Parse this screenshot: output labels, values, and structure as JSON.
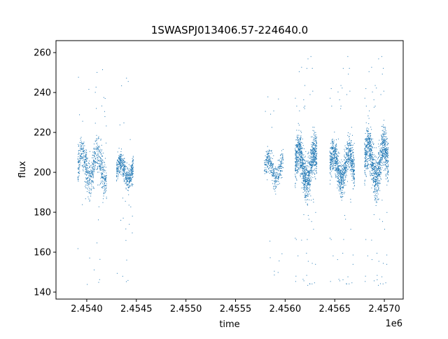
{
  "chart_data": {
    "type": "scatter",
    "title": "1SWASPJ013406.57-224640.0",
    "xlabel": "time",
    "ylabel": "flux",
    "x_offset_label": "1e6",
    "xlim": [
      2453670,
      2457170
    ],
    "ylim": [
      136.5,
      266
    ],
    "grid": false,
    "point_color": "#1f77b4",
    "x_ticks": [
      2453980,
      2454480,
      2454980,
      2455480,
      2455980,
      2456480,
      2456980
    ],
    "x_tick_labels": [
      "2.4540",
      "2.4545",
      "2.4550",
      "2.4555",
      "2.4560",
      "2.4565",
      "2.4570"
    ],
    "y_ticks": [
      140,
      160,
      180,
      200,
      220,
      240,
      260
    ],
    "y_tick_labels": [
      "140",
      "160",
      "180",
      "200",
      "220",
      "240",
      "260"
    ],
    "clusters": [
      {
        "x_start": 2453890,
        "x_end": 2454180,
        "y_center": 203,
        "y_core_spread": 12,
        "y_min": 142,
        "y_max": 253,
        "density": 700
      },
      {
        "x_start": 2454280,
        "x_end": 2454450,
        "y_center": 201,
        "y_core_spread": 7,
        "y_min": 144,
        "y_max": 250,
        "density": 500
      },
      {
        "x_start": 2455770,
        "x_end": 2455960,
        "y_center": 202,
        "y_core_spread": 8,
        "y_min": 145,
        "y_max": 246,
        "density": 380
      },
      {
        "x_start": 2456080,
        "x_end": 2456300,
        "y_center": 203,
        "y_core_spread": 13,
        "y_min": 142,
        "y_max": 260,
        "density": 1100
      },
      {
        "x_start": 2456430,
        "x_end": 2456680,
        "y_center": 203,
        "y_core_spread": 11,
        "y_min": 142,
        "y_max": 260,
        "density": 1000
      },
      {
        "x_start": 2456780,
        "x_end": 2457020,
        "y_center": 205,
        "y_core_spread": 14,
        "y_min": 142,
        "y_max": 260,
        "density": 1100
      }
    ]
  }
}
